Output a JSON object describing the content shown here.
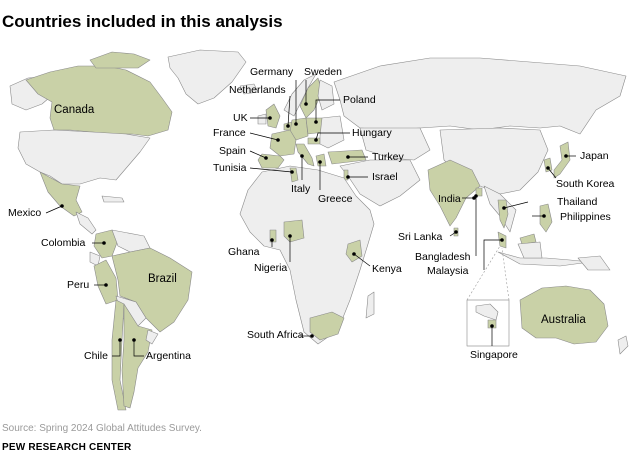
{
  "title": "Countries included in this analysis",
  "labels": {
    "canada": "Canada",
    "mexico": "Mexico",
    "colombia": "Colombia",
    "peru": "Peru",
    "brazil": "Brazil",
    "chile": "Chile",
    "argentina": "Argentina",
    "germany": "Germany",
    "sweden": "Sweden",
    "netherlands": "Netherlands",
    "poland": "Poland",
    "uk": "UK",
    "france": "France",
    "hungary": "Hungary",
    "spain": "Spain",
    "turkey": "Turkey",
    "tunisia": "Tunisia",
    "israel": "Israel",
    "italy": "Italy",
    "greece": "Greece",
    "ghana": "Ghana",
    "nigeria": "Nigeria",
    "kenya": "Kenya",
    "south_africa": "South Africa",
    "india": "India",
    "sri_lanka": "Sri Lanka",
    "bangladesh": "Bangladesh",
    "malaysia": "Malaysia",
    "thailand": "Thailand",
    "philippines": "Philippines",
    "japan": "Japan",
    "south_korea": "South Korea",
    "australia": "Australia",
    "singapore": "Singapore"
  },
  "colors": {
    "included": "#c9d1a7",
    "not_included": "#eeeeee",
    "border": "#8a8a8a",
    "leader": "#000000"
  },
  "source": "Source: Spring 2024 Global Attitudes Survey.",
  "brand": "PEW RESEARCH CENTER"
}
